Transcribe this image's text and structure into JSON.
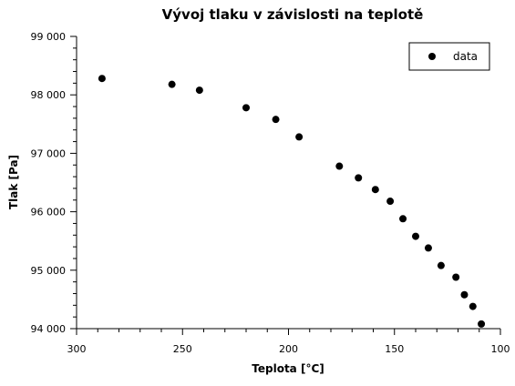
{
  "chart_data": {
    "type": "scatter",
    "title": "Vývoj tlaku v závislosti na teplotě",
    "xlabel": "Teplota [°C]",
    "ylabel": "Tlak [Pa]",
    "xlim": [
      300,
      100
    ],
    "ylim": [
      94000,
      99000
    ],
    "x_reversed": true,
    "x_ticks": [
      300,
      250,
      200,
      150,
      100
    ],
    "x_tick_labels": [
      "300",
      "250",
      "200",
      "150",
      "100"
    ],
    "y_ticks": [
      94000,
      95000,
      96000,
      97000,
      98000,
      99000
    ],
    "y_tick_labels": [
      "94 000",
      "95 000",
      "96 000",
      "97 000",
      "98 000",
      "99 000"
    ],
    "grid": false,
    "legend_position": "top-right",
    "series": [
      {
        "name": "data",
        "color": "#000000",
        "marker": "circle",
        "x": [
          288,
          255,
          242,
          220,
          206,
          195,
          176,
          167,
          159,
          152,
          146,
          140,
          134,
          128,
          121,
          117,
          113,
          109
        ],
        "y": [
          98280,
          98180,
          98080,
          97780,
          97580,
          97280,
          96780,
          96580,
          96380,
          96180,
          95880,
          95580,
          95380,
          95080,
          94880,
          94580,
          94380,
          94080
        ]
      }
    ]
  }
}
